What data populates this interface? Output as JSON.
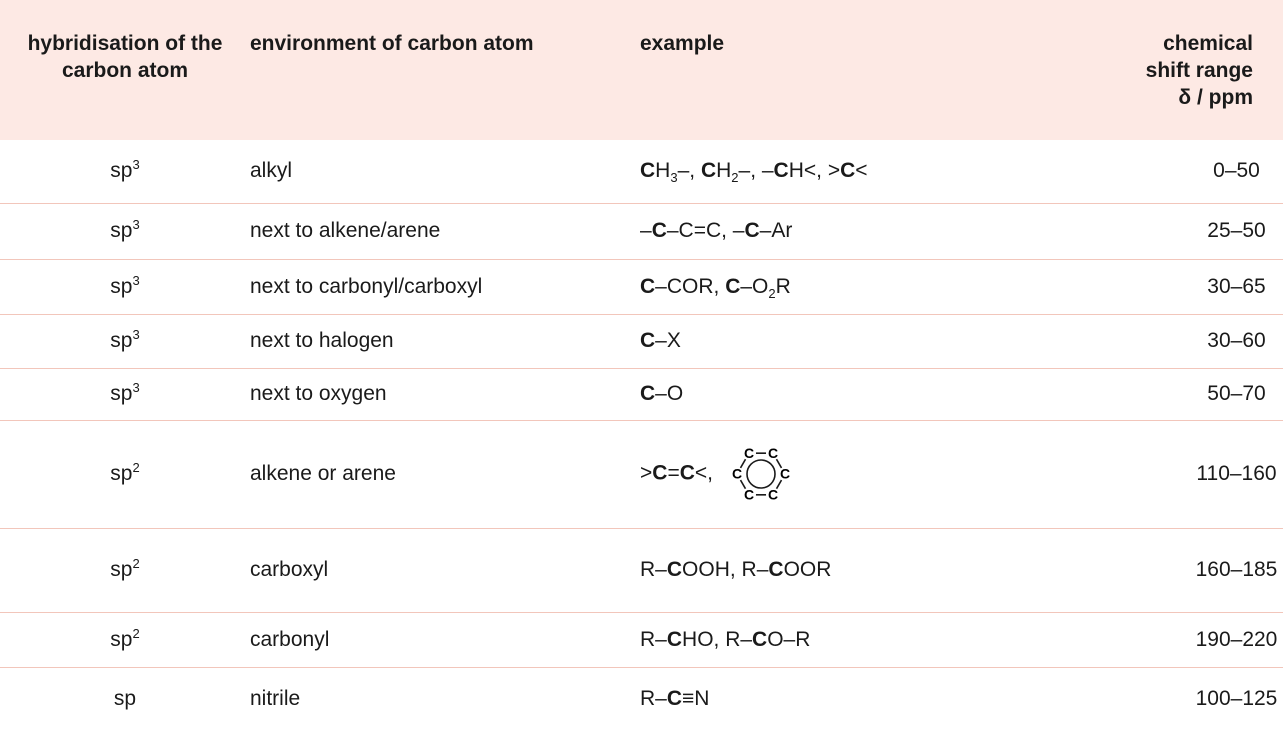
{
  "table": {
    "header": [
      "hybridisation of the carbon atom",
      "environment of carbon atom",
      "example",
      [
        "chemical shift range",
        "δ / ppm"
      ]
    ],
    "rows": [
      {
        "hybridisation": [
          "sp",
          "3"
        ],
        "environment": "alkyl",
        "example": [
          "C",
          "H",
          "3",
          "–, ",
          "C",
          "H",
          "2",
          "–, –",
          "C",
          "H<, >",
          "C",
          "<"
        ],
        "shift": "0–50"
      },
      {
        "hybridisation": [
          "sp",
          "3"
        ],
        "environment": "next to alkene/arene",
        "example": [
          "–",
          "C",
          "–C=C, –",
          "C",
          "–Ar"
        ],
        "shift": "25–50"
      },
      {
        "hybridisation": [
          "sp",
          "3"
        ],
        "environment": "next to carbonyl/carboxyl",
        "example": [
          "C",
          "–COR, ",
          "C",
          "–O",
          "2",
          "R"
        ],
        "shift": "30–65"
      },
      {
        "hybridisation": [
          "sp",
          "3"
        ],
        "environment": "next to halogen",
        "example": [
          "C",
          "–X"
        ],
        "shift": "30–60"
      },
      {
        "hybridisation": [
          "sp",
          "3"
        ],
        "environment": "next to oxygen",
        "example": [
          "C",
          "–O"
        ],
        "shift": "50–70"
      },
      {
        "hybridisation": [
          "sp",
          "2"
        ],
        "environment": "alkene or arene",
        "example": [
          ">",
          "C",
          "=",
          "C",
          "<, "
        ],
        "benzene": [
          "C",
          "C",
          "C",
          "C",
          "C",
          "C"
        ],
        "shift": "110–160"
      },
      {
        "hybridisation": [
          "sp",
          "2"
        ],
        "environment": "carboxyl",
        "example": [
          "R–",
          "C",
          "OOH, R–",
          "C",
          "OOR"
        ],
        "shift": "160–185"
      },
      {
        "hybridisation": [
          "sp",
          "2"
        ],
        "environment": "carbonyl",
        "example": [
          "R–",
          "C",
          "HO, R–",
          "C",
          "O–R"
        ],
        "shift": "190–220"
      },
      {
        "hybridisation": [
          "sp"
        ],
        "environment": "nitrile",
        "example": [
          "R–",
          "C",
          "≡N"
        ],
        "shift": "100–125"
      }
    ]
  }
}
